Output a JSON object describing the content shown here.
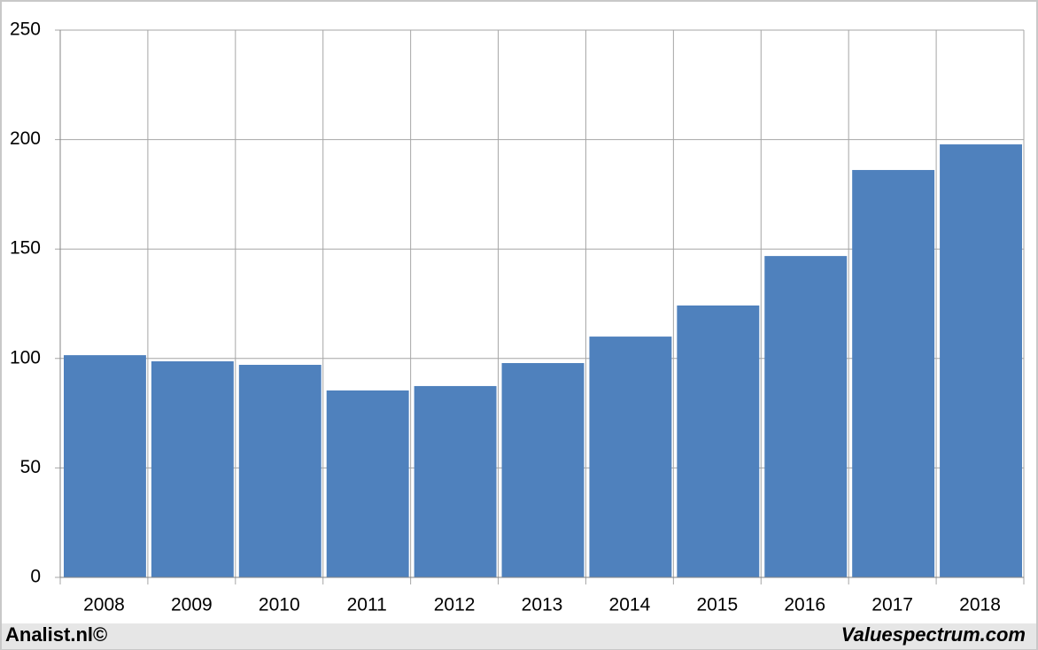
{
  "chart_data": {
    "type": "bar",
    "categories": [
      "2008",
      "2009",
      "2010",
      "2011",
      "2012",
      "2013",
      "2014",
      "2015",
      "2016",
      "2017",
      "2018"
    ],
    "values": [
      101.5,
      98.7,
      97.1,
      85.4,
      87.4,
      97.9,
      110,
      124.2,
      146.8,
      186.1,
      197.8
    ],
    "color": "#4f81bd",
    "ylim": [
      0,
      250
    ],
    "yticks": [
      0,
      50,
      100,
      150,
      200,
      250
    ],
    "grid": true
  },
  "footer": {
    "left": "Analist.nl©",
    "right": "Valuespectrum.com"
  }
}
